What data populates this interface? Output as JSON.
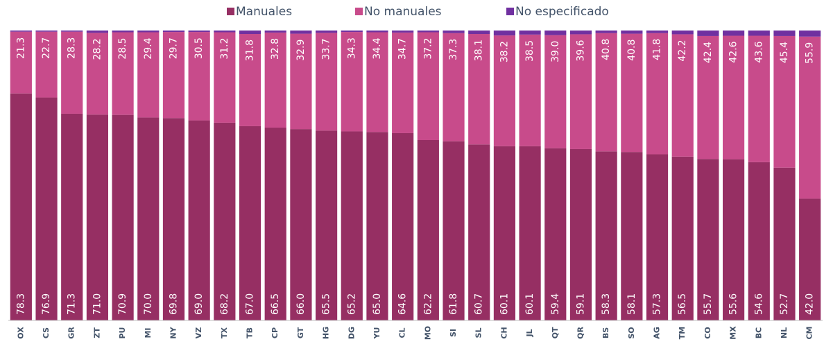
{
  "chart_data": {
    "type": "stacked_bar",
    "categories": [
      "OX",
      "CS",
      "GR",
      "ZT",
      "PU",
      "MI",
      "NY",
      "VZ",
      "TX",
      "TB",
      "CP",
      "GT",
      "HG",
      "DG",
      "YU",
      "CL",
      "MO",
      "SI",
      "SL",
      "CH",
      "JL",
      "QT",
      "QR",
      "BS",
      "SO",
      "AG",
      "TM",
      "CO",
      "MX",
      "BC",
      "NL",
      "CM"
    ],
    "series": [
      {
        "name": "Manuales",
        "color": "#962f63",
        "values": [
          78.3,
          76.9,
          71.3,
          71.0,
          70.9,
          70.0,
          69.8,
          69.0,
          68.2,
          67.0,
          66.5,
          66.0,
          65.5,
          65.2,
          65.0,
          64.6,
          62.2,
          61.8,
          60.7,
          60.1,
          60.1,
          59.4,
          59.1,
          58.3,
          58.1,
          57.3,
          56.5,
          55.7,
          55.6,
          54.6,
          52.7,
          42.0
        ],
        "value_labels": [
          "78.3",
          "76.9",
          "71.3",
          "71.0",
          "70.9",
          "70.0",
          "69.8",
          "69.0",
          "68.2",
          "67.0",
          "66.5",
          "66.0",
          "65.5",
          "65.2",
          "65.0",
          "64.6",
          "62.2",
          "61.8",
          "60.7",
          "60.1",
          "60.1",
          "59.4",
          "59.1",
          "58.3",
          "58.1",
          "57.3",
          "56.5",
          "55.7",
          "55.6",
          "54.6",
          "52.7",
          "42.0"
        ]
      },
      {
        "name": "No manuales",
        "color": "#c84b8b",
        "values": [
          21.3,
          22.7,
          28.3,
          28.2,
          28.5,
          29.4,
          29.7,
          30.5,
          31.2,
          31.8,
          32.8,
          32.9,
          33.7,
          34.3,
          34.4,
          34.7,
          37.2,
          37.3,
          38.1,
          38.2,
          38.5,
          39.0,
          39.6,
          40.8,
          40.8,
          41.8,
          42.2,
          42.4,
          42.6,
          43.6,
          45.4,
          55.9
        ],
        "value_labels": [
          "21.3",
          "22.7",
          "28.3",
          "28.2",
          "28.5",
          "29.4",
          "29.7",
          "30.5",
          "31.2",
          "31.8",
          "32.8",
          "32.9",
          "33.7",
          "34.3",
          "34.4",
          "34.7",
          "37.2",
          "37.3",
          "38.1",
          "38.2",
          "38.5",
          "39.0",
          "39.6",
          "40.8",
          "40.8",
          "41.8",
          "42.2",
          "42.4",
          "42.6",
          "43.6",
          "45.4",
          "55.9"
        ]
      },
      {
        "name": "No especificado",
        "color": "#7030a0",
        "values": [
          0.4,
          0.4,
          0.4,
          0.8,
          0.6,
          0.6,
          0.5,
          0.5,
          0.6,
          1.2,
          0.7,
          1.1,
          0.8,
          0.5,
          0.6,
          0.7,
          0.6,
          0.9,
          1.2,
          1.7,
          1.4,
          1.6,
          1.3,
          0.9,
          1.1,
          0.9,
          1.3,
          1.9,
          1.8,
          1.8,
          1.9,
          2.1
        ]
      }
    ],
    "ylim": [
      0,
      100
    ],
    "legend": "top"
  }
}
